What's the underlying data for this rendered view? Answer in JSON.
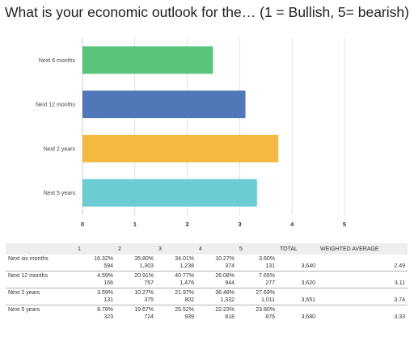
{
  "title": "What is your economic outlook for the… (1 = Bullish, 5= bearish)",
  "chart_data": {
    "type": "bar",
    "orientation": "horizontal",
    "categories": [
      "Next 6 months",
      "Next 12 months",
      "Next 2 years",
      "Next 5 years"
    ],
    "values": [
      2.49,
      3.11,
      3.74,
      3.33
    ],
    "colors": [
      "#5ac47a",
      "#5077b8",
      "#f5b942",
      "#6bccd3"
    ],
    "xlim": [
      0,
      5
    ],
    "xticks": [
      "0",
      "1",
      "2",
      "3",
      "4",
      "5"
    ],
    "grid": true
  },
  "table": {
    "headers": [
      "",
      "1",
      "2",
      "3",
      "4",
      "5",
      "TOTAL",
      "WEIGHTED AVERAGE"
    ],
    "rows": [
      {
        "label": "Next six months",
        "cells": [
          {
            "pct": "16.32%",
            "n": "594"
          },
          {
            "pct": "35.80%",
            "n": "1,303"
          },
          {
            "pct": "34.01%",
            "n": "1,238"
          },
          {
            "pct": "10.27%",
            "n": "374"
          },
          {
            "pct": "3.60%",
            "n": "131"
          }
        ],
        "total": "3,640",
        "avg": "2.49"
      },
      {
        "label": "Next 12 months",
        "cells": [
          {
            "pct": "4.59%",
            "n": "166"
          },
          {
            "pct": "20.91%",
            "n": "757"
          },
          {
            "pct": "40.77%",
            "n": "1,476"
          },
          {
            "pct": "26.08%",
            "n": "944"
          },
          {
            "pct": "7.65%",
            "n": "277"
          }
        ],
        "total": "3,620",
        "avg": "3.11"
      },
      {
        "label": "Next 2 years",
        "cells": [
          {
            "pct": "3.59%",
            "n": "131"
          },
          {
            "pct": "10.27%",
            "n": "375"
          },
          {
            "pct": "21.97%",
            "n": "802"
          },
          {
            "pct": "36.48%",
            "n": "1,332"
          },
          {
            "pct": "27.69%",
            "n": "1,011"
          }
        ],
        "total": "3,651",
        "avg": "3.74"
      },
      {
        "label": "Next 5 years",
        "cells": [
          {
            "pct": "8.78%",
            "n": "323"
          },
          {
            "pct": "19.67%",
            "n": "724"
          },
          {
            "pct": "25.52%",
            "n": "939"
          },
          {
            "pct": "22.23%",
            "n": "818"
          },
          {
            "pct": "23.80%",
            "n": "876"
          }
        ],
        "total": "3,680",
        "avg": "3.33"
      }
    ]
  }
}
